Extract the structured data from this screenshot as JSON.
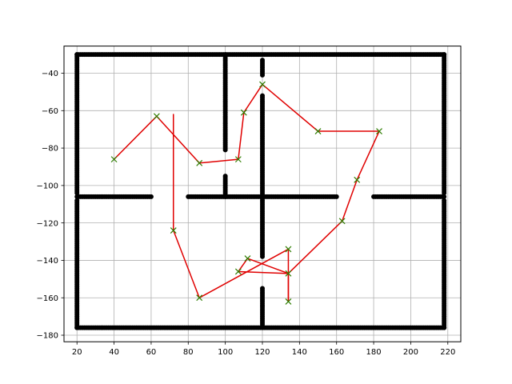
{
  "chart_data": {
    "type": "scatter",
    "title": "",
    "xlabel": "",
    "ylabel": "",
    "xlim": [
      13,
      227
    ],
    "ylim": [
      -183.5,
      -25.5
    ],
    "xticks": [
      20,
      40,
      60,
      80,
      100,
      120,
      140,
      160,
      180,
      200,
      220
    ],
    "yticks": [
      -180,
      -160,
      -140,
      -120,
      -100,
      -80,
      -60,
      -40
    ],
    "xtick_labels": [
      "20",
      "40",
      "60",
      "80",
      "100",
      "120",
      "140",
      "160",
      "180",
      "200",
      "220"
    ],
    "ytick_labels": [
      "−180",
      "−160",
      "−140",
      "−120",
      "−100",
      "−80",
      "−60",
      "−40"
    ],
    "grid": true,
    "colors": {
      "obstacles": "#000000",
      "path": "#e00000",
      "waypoints": "#2e7d00"
    },
    "series": [
      {
        "type": "obstacle-segments",
        "marker": "filled-circle",
        "segments": [
          {
            "from": [
              20,
              -30
            ],
            "to": [
              218,
              -30
            ]
          },
          {
            "from": [
              20,
              -176
            ],
            "to": [
              218,
              -176
            ]
          },
          {
            "from": [
              20,
              -30
            ],
            "to": [
              20,
              -104
            ]
          },
          {
            "from": [
              20,
              -108
            ],
            "to": [
              20,
              -176
            ]
          },
          {
            "from": [
              218,
              -30
            ],
            "to": [
              218,
              -104
            ]
          },
          {
            "from": [
              218,
              -108
            ],
            "to": [
              218,
              -176
            ]
          },
          {
            "from": [
              20,
              -106
            ],
            "to": [
              60,
              -106
            ]
          },
          {
            "from": [
              80,
              -106
            ],
            "to": [
              160,
              -106
            ]
          },
          {
            "from": [
              180,
              -106
            ],
            "to": [
              218,
              -106
            ]
          },
          {
            "from": [
              100,
              -30
            ],
            "to": [
              100,
              -81
            ]
          },
          {
            "from": [
              100,
              -95
            ],
            "to": [
              100,
              -106
            ]
          },
          {
            "from": [
              120,
              -33
            ],
            "to": [
              120,
              -41
            ]
          },
          {
            "from": [
              120,
              -52
            ],
            "to": [
              120,
              -106
            ]
          },
          {
            "from": [
              120,
              -106
            ],
            "to": [
              120,
              -138
            ]
          },
          {
            "from": [
              120,
              -155
            ],
            "to": [
              120,
              -176
            ]
          }
        ]
      },
      {
        "type": "path",
        "points": [
          [
            72,
            -62
          ],
          [
            72,
            -124
          ],
          [
            86,
            -160
          ],
          [
            134,
            -134
          ],
          [
            134,
            -162
          ],
          [
            134,
            -147
          ],
          [
            112,
            -139
          ],
          [
            107,
            -146
          ],
          [
            134,
            -147
          ],
          [
            163,
            -119
          ],
          [
            171,
            -97
          ],
          [
            183,
            -71
          ],
          [
            150,
            -71
          ],
          [
            120,
            -46
          ],
          [
            110,
            -61
          ],
          [
            107,
            -86
          ],
          [
            86,
            -88
          ],
          [
            63,
            -63
          ],
          [
            40,
            -86
          ]
        ]
      },
      {
        "type": "waypoints",
        "marker": "x",
        "points": [
          [
            40,
            -86
          ],
          [
            63,
            -63
          ],
          [
            86,
            -88
          ],
          [
            107,
            -86
          ],
          [
            110,
            -61
          ],
          [
            120,
            -46
          ],
          [
            150,
            -71
          ],
          [
            183,
            -71
          ],
          [
            171,
            -97
          ],
          [
            163,
            -119
          ],
          [
            134,
            -134
          ],
          [
            134,
            -147
          ],
          [
            134,
            -162
          ],
          [
            112,
            -139
          ],
          [
            107,
            -146
          ],
          [
            86,
            -160
          ],
          [
            72,
            -124
          ]
        ]
      }
    ]
  }
}
